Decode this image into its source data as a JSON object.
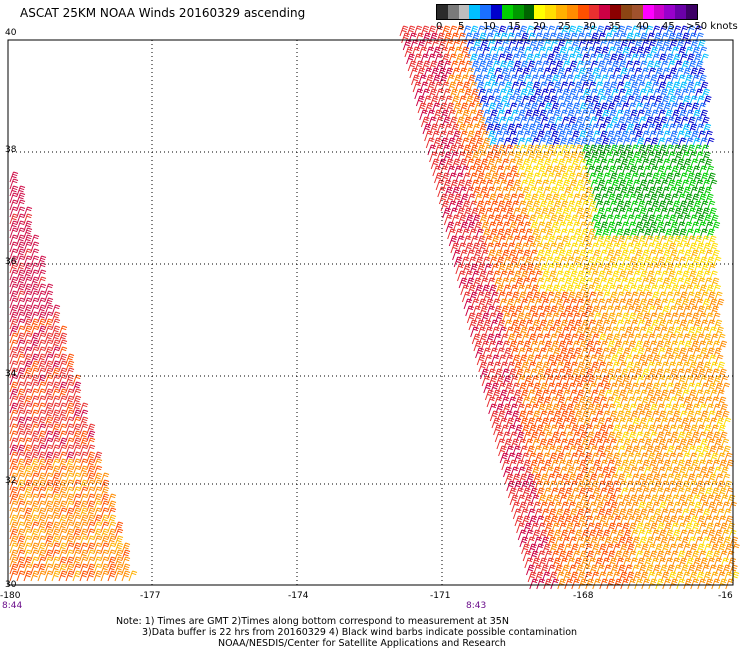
{
  "title": "ASCAT 25KM NOAA Winds 20160329 ascending",
  "legend": {
    "ticks": [
      "0",
      "5",
      "10",
      "15",
      "20",
      "25",
      "30",
      "35",
      "40",
      "45",
      ">50 knots"
    ],
    "colors": [
      "#2b2b2b",
      "#7a7a7a",
      "#bdbdbd",
      "#00bfff",
      "#1a70ff",
      "#0000cc",
      "#00d000",
      "#009900",
      "#006400",
      "#ffff00",
      "#ffdd00",
      "#ffb000",
      "#ff8c00",
      "#ff5000",
      "#e83030",
      "#cc0044",
      "#8b0000",
      "#8b4513",
      "#a0522d",
      "#ff00ff",
      "#cc00cc",
      "#9900cc",
      "#6a00a8",
      "#3d0066"
    ]
  },
  "map": {
    "lat_labels": [
      "40",
      "38",
      "36",
      "34",
      "32",
      "30"
    ],
    "lon_labels": [
      "-180",
      "-177",
      "-174",
      "-171",
      "-168",
      "-16"
    ],
    "time_labels": [
      "8:44",
      "8:43"
    ]
  },
  "notes": [
    "Note: 1) Times are GMT 2)Times along bottom correspond to measurement at 35N",
    "3)Data buffer is 22 hrs from 20160329 4) Black wind barbs indicate possible contamination",
    "NOAA/NESDIS/Center for Satellite Applications and Research"
  ]
}
